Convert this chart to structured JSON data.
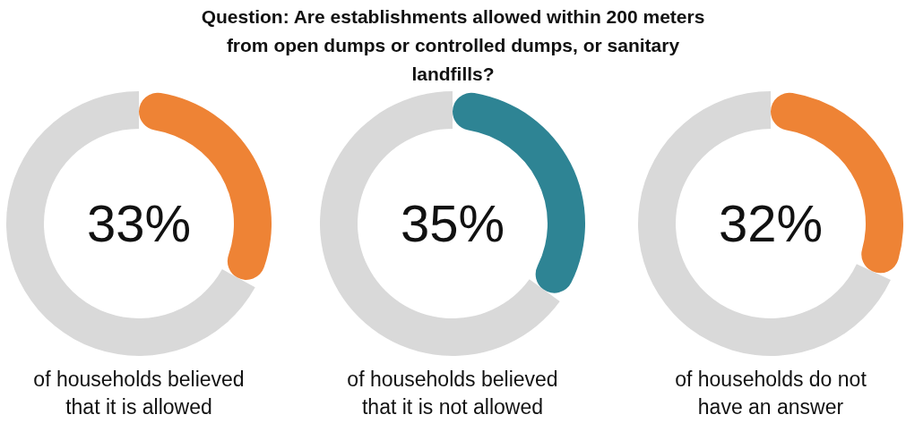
{
  "chart_data": [
    {
      "type": "donut",
      "title": "Question: Are establishments allowed within 200 meters from open dumps or controlled dumps, or sanitary landfills?",
      "categories": [
        null,
        null
      ],
      "values": [
        33,
        67
      ],
      "colors": [
        "#ee8335",
        "#d9d9d9"
      ],
      "value_labels": [
        "33%",
        null
      ],
      "annotations": [
        "of households believed that it is allowed"
      ]
    },
    {
      "type": "donut",
      "categories": [
        null,
        null
      ],
      "values": [
        35,
        65
      ],
      "colors": [
        "#2e8494",
        "#d9d9d9"
      ],
      "value_labels": [
        "35%",
        null
      ],
      "annotations": [
        "of households believed that it is not allowed"
      ]
    },
    {
      "type": "donut",
      "categories": [
        null,
        null
      ],
      "values": [
        32,
        68
      ],
      "colors": [
        "#ee8335",
        "#d9d9d9"
      ],
      "value_labels": [
        "32%",
        null
      ],
      "annotations": [
        "of households do not have an answer"
      ]
    }
  ]
}
